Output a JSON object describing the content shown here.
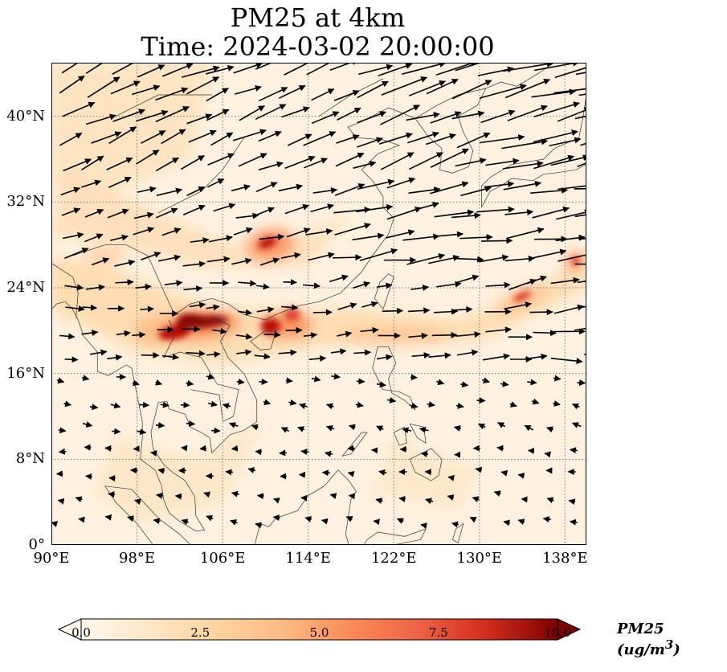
{
  "title": {
    "line1": "PM25 at 4km",
    "line2": "Time: 2024-03-02 20:00:00"
  },
  "map": {
    "extent": {
      "lon_min": 90,
      "lon_max": 140,
      "lat_min": 0,
      "lat_max": 45
    },
    "grid": true,
    "lon_ticks": [
      "90°E",
      "98°E",
      "106°E",
      "114°E",
      "122°E",
      "130°E",
      "138°E"
    ],
    "lat_ticks": [
      "0°",
      "8°N",
      "16°N",
      "24°N",
      "32°N",
      "40°N"
    ],
    "variable": "PM25",
    "wind_vectors": true
  },
  "colorbar": {
    "label": "PM25 (ug/m",
    "label_exp": "3",
    "label_close": ")",
    "min": 0.0,
    "max": 10.0,
    "ticks": [
      "0.0",
      "2.5",
      "5.0",
      "7.5",
      "10.0"
    ],
    "colormap": "OrRd",
    "extend": "both",
    "colors": [
      "#fff7ec",
      "#fdd49e",
      "#fdbb84",
      "#fc8d59",
      "#ef6548",
      "#d7301f",
      "#b30000",
      "#7f0000"
    ]
  }
}
